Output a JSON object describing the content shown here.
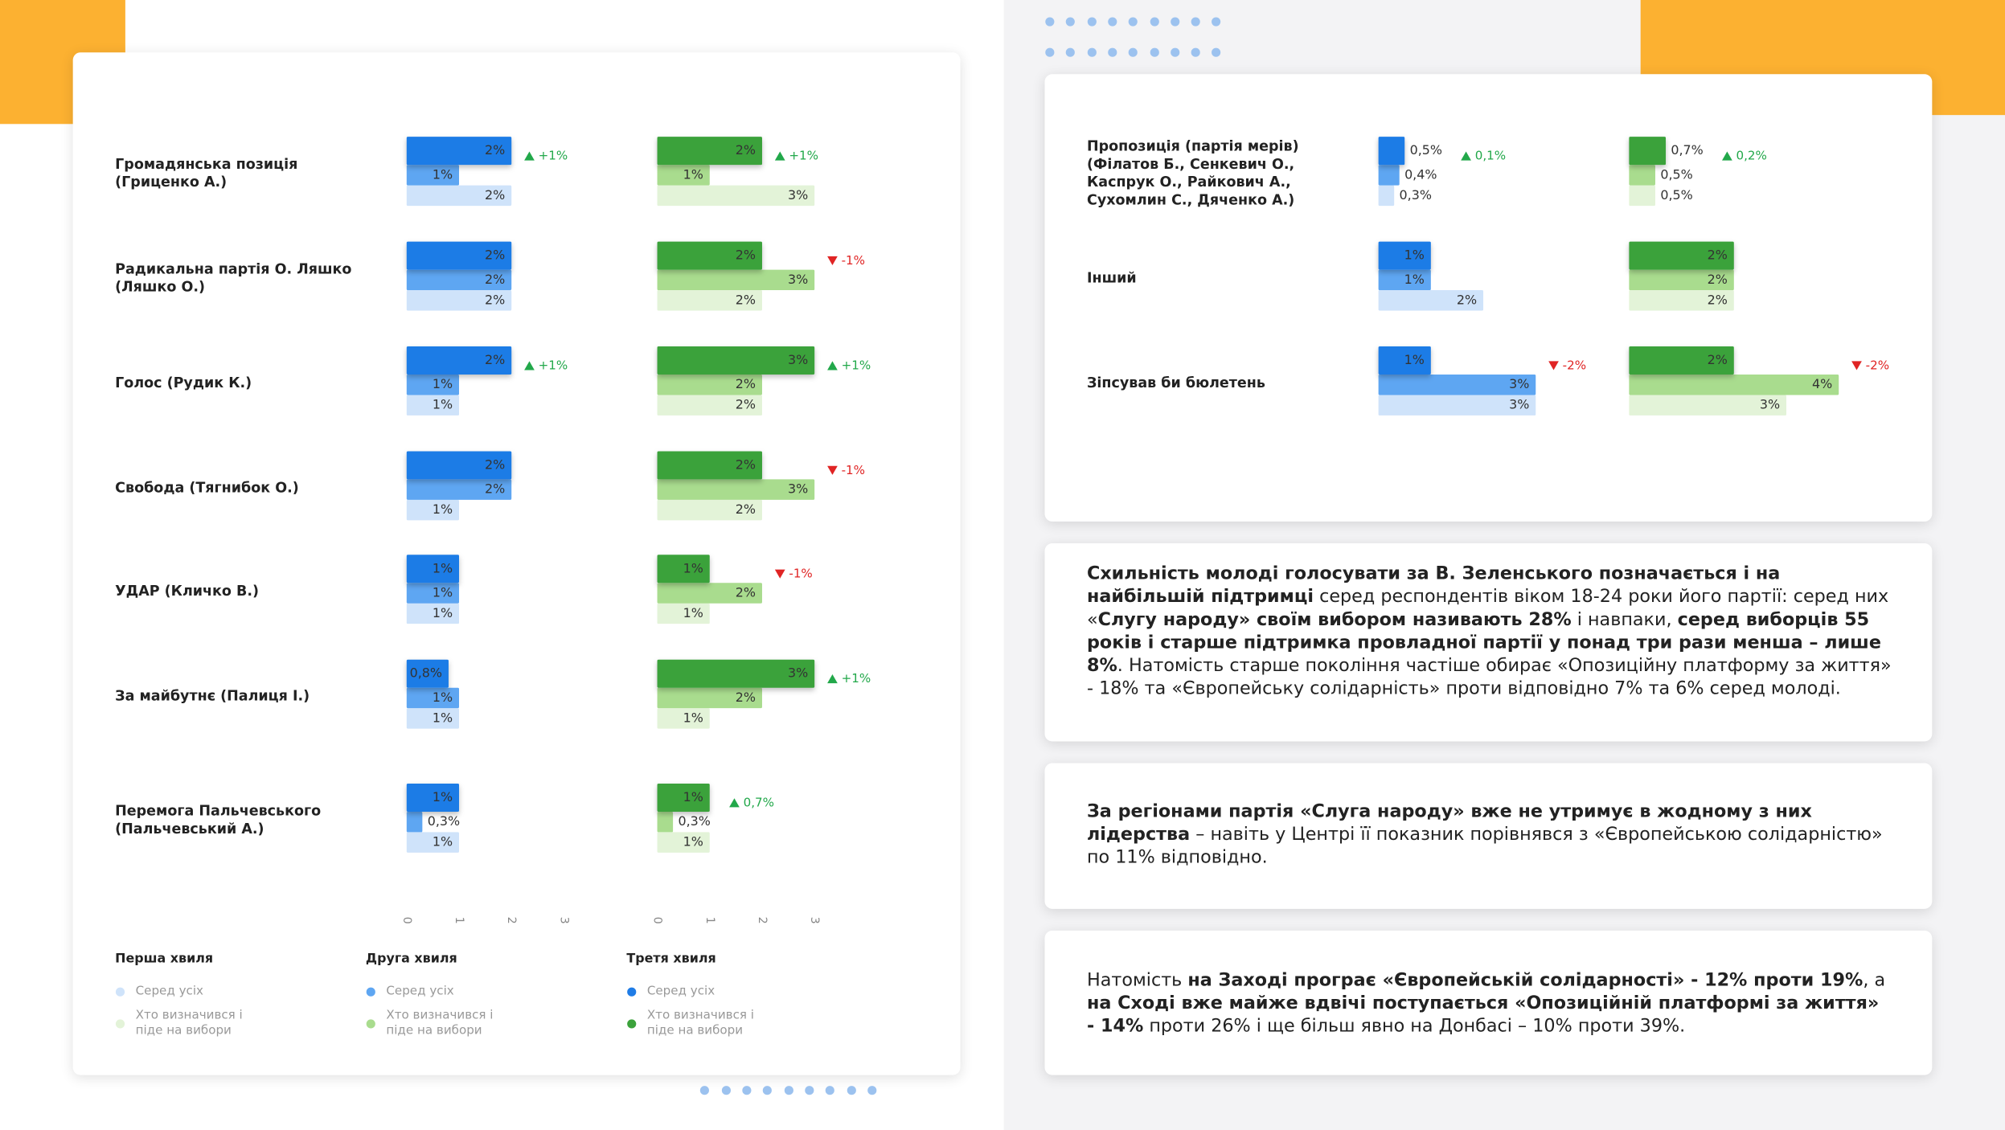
{
  "chart_data": [
    {
      "type": "bar",
      "orientation": "horizontal",
      "categories": [
        "Громадянська позиція (Гриценко А.)",
        "Радикальна партія О. Ляшко (Ляшко О.)",
        "Голос (Рудик К.)",
        "Свобода (Тягнибок О.)",
        "УДАР (Кличко В.)",
        "За майбутнє (Палиця І.)",
        "Перемога Пальчевського (Пальчевський А.)"
      ],
      "xlim": [
        0,
        3
      ],
      "xticks": [
        0,
        1,
        2,
        3
      ],
      "waves": [
        "Перша хвиля",
        "Друга хвиля",
        "Третя хвиля"
      ],
      "groups": [
        {
          "name": "Серед усіх",
          "series": [
            {
              "color": "#cfe3fa",
              "values": [
                2,
                2,
                1,
                1,
                1,
                1,
                1
              ],
              "value_labels": [
                "2%",
                "2%",
                "1%",
                "1%",
                "1%",
                "1%",
                "1%"
              ]
            },
            {
              "color": "#5ea6f2",
              "values": [
                1,
                2,
                1,
                2,
                1,
                1,
                0.3
              ],
              "value_labels": [
                "1%",
                "2%",
                "1%",
                "2%",
                "1%",
                "1%",
                "0,3%"
              ]
            },
            {
              "color": "#1f7ce6",
              "values": [
                2,
                2,
                2,
                2,
                1,
                0.8,
                1
              ],
              "value_labels": [
                "2%",
                "2%",
                "2%",
                "2%",
                "1%",
                "0,8%",
                "1%"
              ]
            }
          ],
          "deltas": [
            1,
            null,
            1,
            null,
            null,
            null,
            null
          ],
          "delta_labels": [
            "+1%",
            null,
            "+1%",
            null,
            null,
            null,
            null
          ]
        },
        {
          "name": "Хто визначився і піде на вибори",
          "series": [
            {
              "color": "#e3f3d8",
              "values": [
                3,
                2,
                2,
                2,
                1,
                1,
                1
              ],
              "value_labels": [
                "3%",
                "2%",
                "2%",
                "2%",
                "1%",
                "1%",
                "1%"
              ]
            },
            {
              "color": "#a9dc8e",
              "values": [
                1,
                3,
                2,
                3,
                2,
                2,
                0.3
              ],
              "value_labels": [
                "1%",
                "3%",
                "2%",
                "3%",
                "2%",
                "2%",
                "0,3%"
              ]
            },
            {
              "color": "#3ba23b",
              "values": [
                2,
                2,
                3,
                2,
                1,
                3,
                1
              ],
              "value_labels": [
                "2%",
                "2%",
                "3%",
                "2%",
                "1%",
                "3%",
                "1%"
              ]
            }
          ],
          "deltas": [
            1,
            -1,
            1,
            -1,
            -1,
            1,
            0.7
          ],
          "delta_labels": [
            "+1%",
            "-1%",
            "+1%",
            "-1%",
            "-1%",
            "+1%",
            "0,7%"
          ]
        }
      ]
    },
    {
      "type": "bar",
      "orientation": "horizontal",
      "categories": [
        "Пропозиція (партія мерів) (Філатов Б., Сенкевич О., Каспрук О., Райкович А., Сухомлин С., Дяченко А.)",
        "Інший",
        "Зіпсував би бюлетень"
      ],
      "groups": [
        {
          "series": [
            {
              "color": "#cfe3fa",
              "values": [
                0.3,
                2,
                3
              ],
              "value_labels": [
                "0,3%",
                "2%",
                "3%"
              ]
            },
            {
              "color": "#5ea6f2",
              "values": [
                0.4,
                1,
                3
              ],
              "value_labels": [
                "0,4%",
                "1%",
                "3%"
              ]
            },
            {
              "color": "#1f7ce6",
              "values": [
                0.5,
                1,
                1
              ],
              "value_labels": [
                "0,5%",
                "1%",
                "1%"
              ]
            }
          ],
          "deltas": [
            0.1,
            null,
            -2
          ],
          "delta_labels": [
            "0,1%",
            null,
            "-2%"
          ]
        },
        {
          "series": [
            {
              "color": "#e3f3d8",
              "values": [
                0.5,
                2,
                3
              ],
              "value_labels": [
                "0,5%",
                "2%",
                "3%"
              ]
            },
            {
              "color": "#a9dc8e",
              "values": [
                0.5,
                2,
                4
              ],
              "value_labels": [
                "0,5%",
                "2%",
                "4%"
              ]
            },
            {
              "color": "#3ba23b",
              "values": [
                0.7,
                2,
                2
              ],
              "value_labels": [
                "0,7%",
                "2%",
                "2%"
              ]
            }
          ],
          "deltas": [
            0.2,
            null,
            -2
          ],
          "delta_labels": [
            "0,2%",
            null,
            "-2%"
          ]
        }
      ]
    }
  ],
  "notes": [
    {
      "runs": [
        {
          "text": "Схильність молоді голосувати за В. Зеленського позначається і на найбільшій підтримці",
          "bold": true
        },
        {
          "text": " серед респондентів віком 18-24 роки його партії: серед них «",
          "bold": false
        },
        {
          "text": "Слугу народу» своїм вибором називають 28%",
          "bold": true
        },
        {
          "text": " і навпаки, ",
          "bold": false
        },
        {
          "text": "серед виборців 55 років і старше підтримка провладної партії у понад три рази менша – лише 8%",
          "bold": true
        },
        {
          "text": ". Натомість старше покоління частіше обирає «Опозиційну платформу за життя» - 18% та «Європейську солідарність» проти відповідно 7% та 6%  серед молоді.",
          "bold": false
        }
      ]
    },
    {
      "runs": [
        {
          "text": "За регіонами партія «Слуга народу» вже не утримує в жодному з них лідерства",
          "bold": true
        },
        {
          "text": " – навіть у Центрі її показник порівнявся з «Європейською солідарністю» по 11% відповідно.",
          "bold": false
        }
      ]
    },
    {
      "runs": [
        {
          "text": "Натомість ",
          "bold": false
        },
        {
          "text": "на Заході програє «Європейській солідарності» - 12% проти 19%",
          "bold": true
        },
        {
          "text": ", а ",
          "bold": false
        },
        {
          "text": "на Сході вже майже вдвічі поступається «Опозиційній платформі за життя» - 14%",
          "bold": true
        },
        {
          "text": " проти 26% і ще більш явно на Донбасі – 10% проти 39%.",
          "bold": false
        }
      ]
    }
  ]
}
